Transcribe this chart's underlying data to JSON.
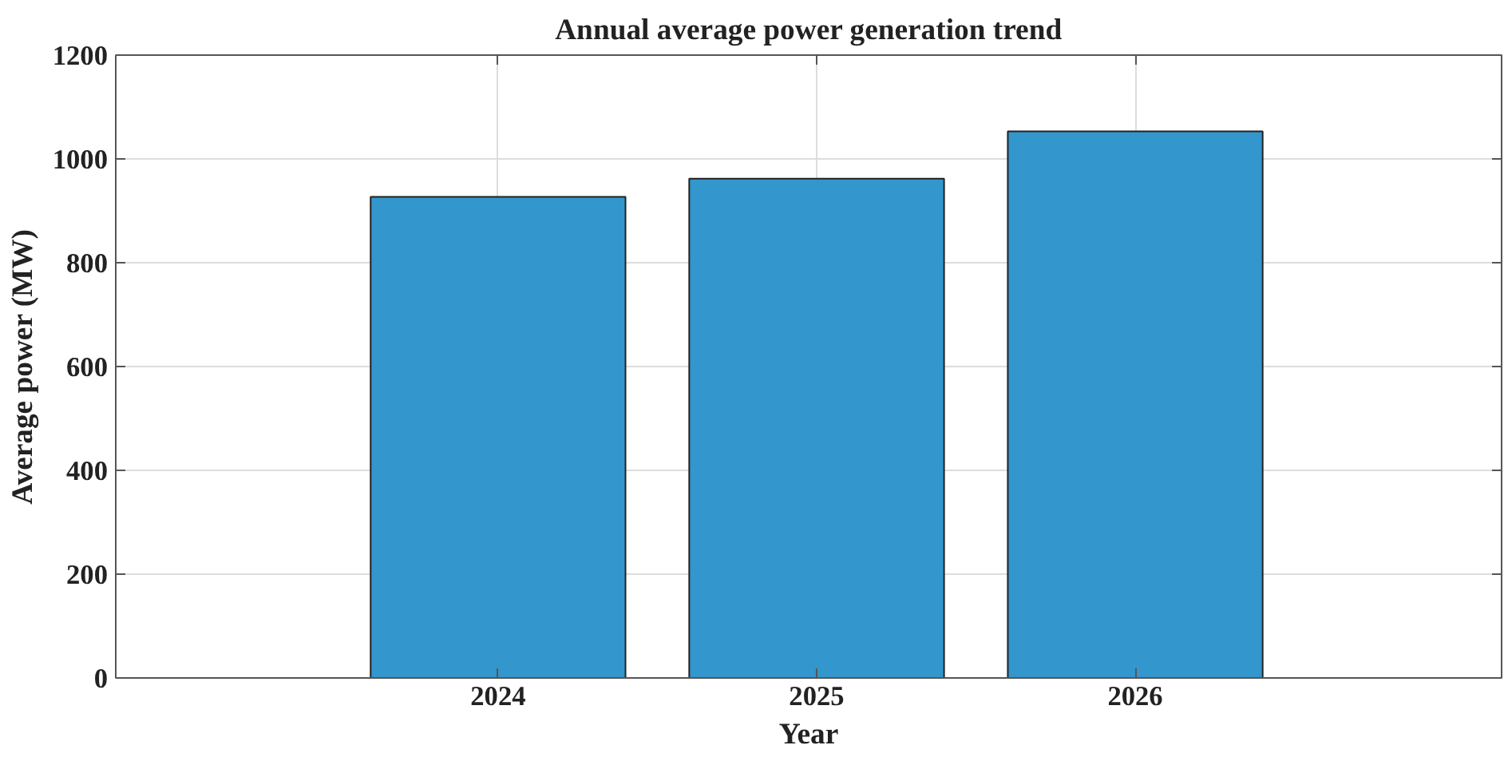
{
  "chart_data": {
    "type": "bar",
    "title": "Annual average power generation trend",
    "xlabel": "Year",
    "ylabel": "Average power (MW)",
    "categories": [
      "2024",
      "2025",
      "2026"
    ],
    "values": [
      927,
      962,
      1053
    ],
    "color": "#3396cc",
    "ylim": [
      0,
      1200
    ],
    "yticks": [
      0,
      200,
      400,
      600,
      800,
      1000,
      1200
    ],
    "grid": true
  }
}
